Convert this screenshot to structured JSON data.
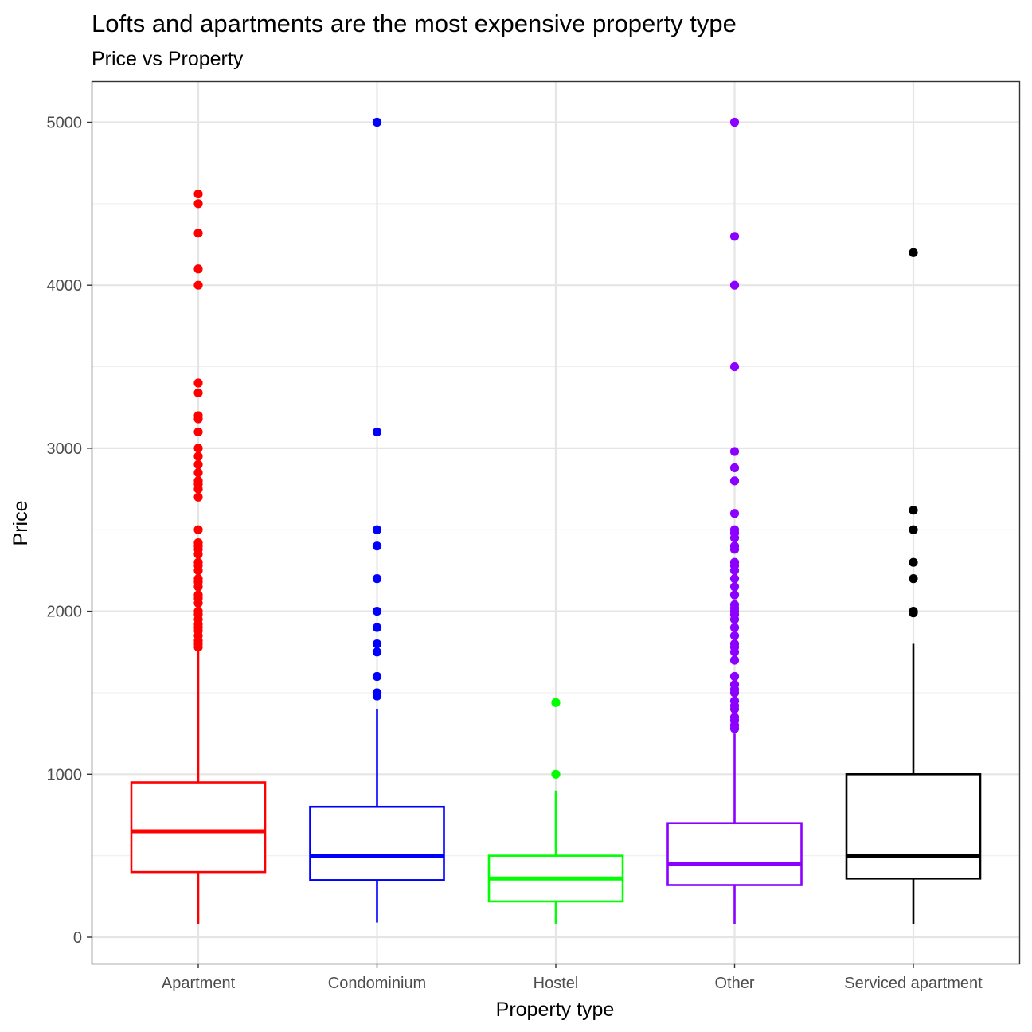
{
  "chart_data": {
    "type": "box",
    "title": "Lofts and apartments are the most expensive property type",
    "subtitle": "Price vs Property",
    "xlabel": "Property type",
    "ylabel": "Price",
    "ylim": [
      -150,
      5240
    ],
    "yticks": [
      0,
      1000,
      2000,
      3000,
      4000,
      5000
    ],
    "y_minor_ticks": [
      500,
      1500,
      2500,
      3500,
      4500
    ],
    "grid": true,
    "legend": "none",
    "categories": [
      "Apartment",
      "Condominium",
      "Hostel",
      "Other",
      "Serviced apartment"
    ],
    "series": [
      {
        "category": "Apartment",
        "color": "#FF0000",
        "whisker_low": 80,
        "q1": 400,
        "median": 650,
        "q3": 950,
        "whisker_high": 1780,
        "outliers": [
          1780,
          1800,
          1820,
          1850,
          1880,
          1900,
          1920,
          1950,
          1980,
          2000,
          2050,
          2080,
          2100,
          2150,
          2180,
          2200,
          2250,
          2280,
          2300,
          2350,
          2380,
          2400,
          2420,
          2500,
          2700,
          2750,
          2780,
          2800,
          2850,
          2900,
          2950,
          3000,
          3100,
          3180,
          3200,
          3340,
          3400,
          4000,
          4100,
          4320,
          4500,
          4560
        ]
      },
      {
        "category": "Condominium",
        "color": "#0000FF",
        "whisker_low": 90,
        "q1": 350,
        "median": 500,
        "q3": 800,
        "whisker_high": 1400,
        "outliers": [
          1480,
          1500,
          1600,
          1750,
          1800,
          1900,
          2000,
          2200,
          2400,
          2500,
          3100,
          5000
        ]
      },
      {
        "category": "Hostel",
        "color": "#00FF00",
        "whisker_low": 80,
        "q1": 220,
        "median": 360,
        "q3": 500,
        "whisker_high": 900,
        "outliers": [
          1000,
          1440
        ]
      },
      {
        "category": "Other",
        "color": "#8B00FF",
        "whisker_low": 80,
        "q1": 320,
        "median": 450,
        "q3": 700,
        "whisker_high": 1250,
        "outliers": [
          1280,
          1300,
          1330,
          1350,
          1400,
          1420,
          1450,
          1500,
          1520,
          1550,
          1600,
          1700,
          1750,
          1780,
          1800,
          1850,
          1900,
          1950,
          1980,
          2000,
          2020,
          2040,
          2100,
          2150,
          2200,
          2250,
          2280,
          2300,
          2380,
          2400,
          2450,
          2480,
          2500,
          2600,
          2800,
          2880,
          2980,
          3500,
          4000,
          4300,
          5000
        ]
      },
      {
        "category": "Serviced apartment",
        "color": "#000000",
        "whisker_low": 80,
        "q1": 360,
        "median": 500,
        "q3": 1000,
        "whisker_high": 1800,
        "outliers": [
          1990,
          2000,
          2200,
          2300,
          2500,
          2620,
          4200
        ]
      }
    ]
  }
}
